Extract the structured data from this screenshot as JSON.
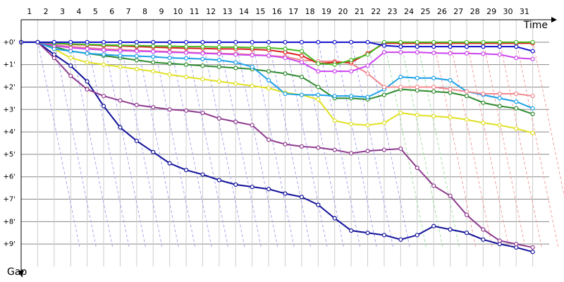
{
  "chart_data": {
    "type": "line",
    "x_label": "Time",
    "y_label": "Gap",
    "x": [
      0,
      1,
      2,
      3,
      4,
      5,
      6,
      7,
      8,
      9,
      10,
      11,
      12,
      13,
      14,
      15,
      16,
      17,
      18,
      19,
      20,
      21,
      22,
      23,
      24,
      25,
      26,
      27,
      28,
      29,
      30,
      31
    ],
    "xlim": [
      0,
      32
    ],
    "ylim": [
      -1,
      10
    ],
    "xticks": [
      1,
      2,
      3,
      4,
      5,
      6,
      7,
      8,
      9,
      10,
      11,
      12,
      13,
      14,
      15,
      16,
      17,
      18,
      19,
      20,
      21,
      22,
      23,
      24,
      25,
      26,
      27,
      28,
      29,
      30,
      31
    ],
    "yticks": [
      {
        "value": 0,
        "label": "+0'"
      },
      {
        "value": 1,
        "label": "+1'"
      },
      {
        "value": 2,
        "label": "+2'"
      },
      {
        "value": 3,
        "label": "+3'"
      },
      {
        "value": 4,
        "label": "+4'"
      },
      {
        "value": 5,
        "label": "+5'"
      },
      {
        "value": 6,
        "label": "+6'"
      },
      {
        "value": 7,
        "label": "+7'"
      },
      {
        "value": 8,
        "label": "+8'"
      },
      {
        "value": 9,
        "label": "+9'"
      }
    ],
    "y_inverted": true,
    "grid": true,
    "series": [
      {
        "color": "#10109a",
        "values": [
          0,
          0,
          0.55,
          1.05,
          1.75,
          2.85,
          3.8,
          4.4,
          4.9,
          5.4,
          5.7,
          5.9,
          6.15,
          6.35,
          6.45,
          6.55,
          6.75,
          6.9,
          7.25,
          7.85,
          8.4,
          8.5,
          8.6,
          8.8,
          8.6,
          8.2,
          8.35,
          8.5,
          8.8,
          9.0,
          9.15,
          9.35
        ]
      },
      {
        "color": "#8e3a8e",
        "values": [
          0,
          0,
          0.7,
          1.5,
          2.1,
          2.4,
          2.6,
          2.8,
          2.9,
          3.0,
          3.05,
          3.15,
          3.4,
          3.55,
          3.7,
          4.35,
          4.55,
          4.65,
          4.7,
          4.8,
          4.95,
          4.85,
          4.8,
          4.75,
          5.6,
          6.4,
          6.85,
          7.7,
          8.35,
          8.85,
          9.0,
          9.15
        ]
      },
      {
        "color": "#e0e020",
        "values": [
          0,
          0,
          0.3,
          0.7,
          0.9,
          1.0,
          1.1,
          1.2,
          1.3,
          1.45,
          1.55,
          1.65,
          1.75,
          1.85,
          1.95,
          2.05,
          2.25,
          2.35,
          2.55,
          3.5,
          3.65,
          3.7,
          3.6,
          3.15,
          3.25,
          3.3,
          3.35,
          3.45,
          3.6,
          3.7,
          3.85,
          4.05
        ]
      },
      {
        "color": "#2e8b2e",
        "values": [
          0,
          0,
          0.2,
          0.4,
          0.5,
          0.6,
          0.7,
          0.8,
          0.9,
          0.95,
          1.0,
          1.05,
          1.1,
          1.15,
          1.2,
          1.3,
          1.4,
          1.55,
          2.0,
          2.5,
          2.5,
          2.55,
          2.35,
          2.1,
          2.15,
          2.2,
          2.25,
          2.4,
          2.7,
          2.85,
          2.95,
          3.2
        ]
      },
      {
        "color": "#1aa0e8",
        "values": [
          0,
          0,
          0.3,
          0.4,
          0.5,
          0.55,
          0.6,
          0.62,
          0.65,
          0.7,
          0.72,
          0.75,
          0.8,
          0.9,
          1.1,
          1.7,
          2.3,
          2.35,
          2.35,
          2.4,
          2.4,
          2.45,
          2.1,
          1.55,
          1.6,
          1.6,
          1.7,
          2.2,
          2.35,
          2.5,
          2.65,
          2.95
        ]
      },
      {
        "color": "#f08890",
        "values": [
          0,
          0,
          0.12,
          0.2,
          0.25,
          0.3,
          0.33,
          0.37,
          0.4,
          0.42,
          0.45,
          0.48,
          0.5,
          0.52,
          0.55,
          0.6,
          0.65,
          0.8,
          0.85,
          0.85,
          0.95,
          1.4,
          2.0,
          2.0,
          2.0,
          2.0,
          2.1,
          2.2,
          2.3,
          2.3,
          2.3,
          2.4
        ]
      },
      {
        "color": "#cc44ee",
        "values": [
          0,
          0,
          0.15,
          0.25,
          0.3,
          0.35,
          0.38,
          0.4,
          0.42,
          0.45,
          0.47,
          0.5,
          0.52,
          0.55,
          0.58,
          0.6,
          0.7,
          0.9,
          1.3,
          1.3,
          1.3,
          1.05,
          0.45,
          0.45,
          0.45,
          0.48,
          0.5,
          0.5,
          0.52,
          0.55,
          0.7,
          0.75
        ]
      },
      {
        "color": "#dd2222",
        "values": [
          0,
          0,
          0.05,
          0.1,
          0.12,
          0.15,
          0.17,
          0.2,
          0.22,
          0.25,
          0.27,
          0.28,
          0.3,
          0.3,
          0.32,
          0.35,
          0.45,
          0.6,
          0.95,
          0.9,
          0.9,
          0.5,
          0.05,
          0.05,
          0.05,
          0.05,
          0.05,
          0.05,
          0.05,
          0.05,
          0.05,
          0.05
        ]
      },
      {
        "color": "#44bb22",
        "values": [
          0,
          0,
          0.05,
          0.08,
          0.1,
          0.12,
          0.14,
          0.15,
          0.17,
          0.18,
          0.2,
          0.2,
          0.22,
          0.22,
          0.24,
          0.25,
          0.3,
          0.4,
          0.95,
          1.0,
          0.8,
          0.55,
          0,
          0,
          0,
          0,
          0,
          0,
          0,
          0,
          0,
          0
        ]
      },
      {
        "color": "#1010cc",
        "values": [
          0,
          0,
          0,
          0,
          0,
          0,
          0,
          0,
          0,
          0,
          0,
          0,
          0,
          0,
          0,
          0,
          0,
          0,
          0,
          0,
          0,
          0,
          0.15,
          0.2,
          0.2,
          0.2,
          0.2,
          0.2,
          0.2,
          0.2,
          0.2,
          0.4
        ]
      }
    ]
  }
}
